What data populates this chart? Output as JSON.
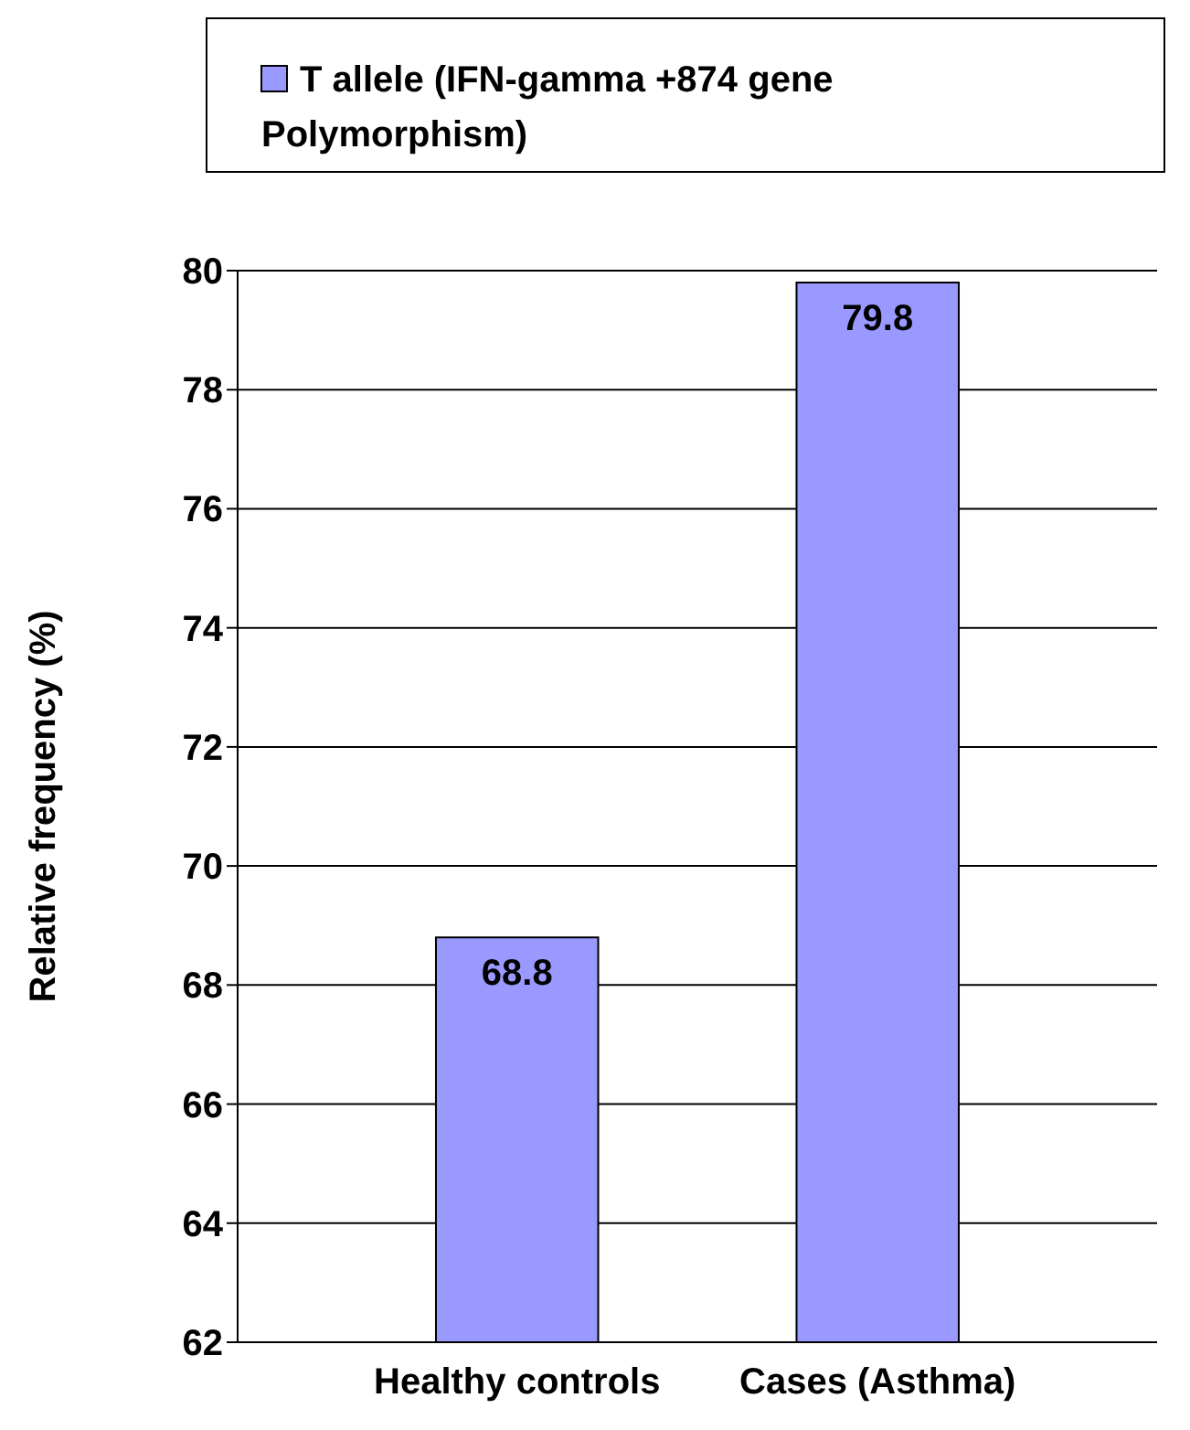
{
  "chart_data": {
    "type": "bar",
    "ylabel": "Relative frequency (%)",
    "categories": [
      "Healthy controls",
      "Cases (Asthma)"
    ],
    "series": [
      {
        "name": "T allele (IFN-gamma +874 gene Polymorphism)",
        "color": "#9999ff",
        "values": [
          68.8,
          79.8
        ]
      }
    ],
    "ylim": [
      62,
      80
    ],
    "yticks": [
      62,
      64,
      66,
      68,
      70,
      72,
      74,
      76,
      78,
      80
    ],
    "grid": "y",
    "legend": "top",
    "data_labels": true
  }
}
